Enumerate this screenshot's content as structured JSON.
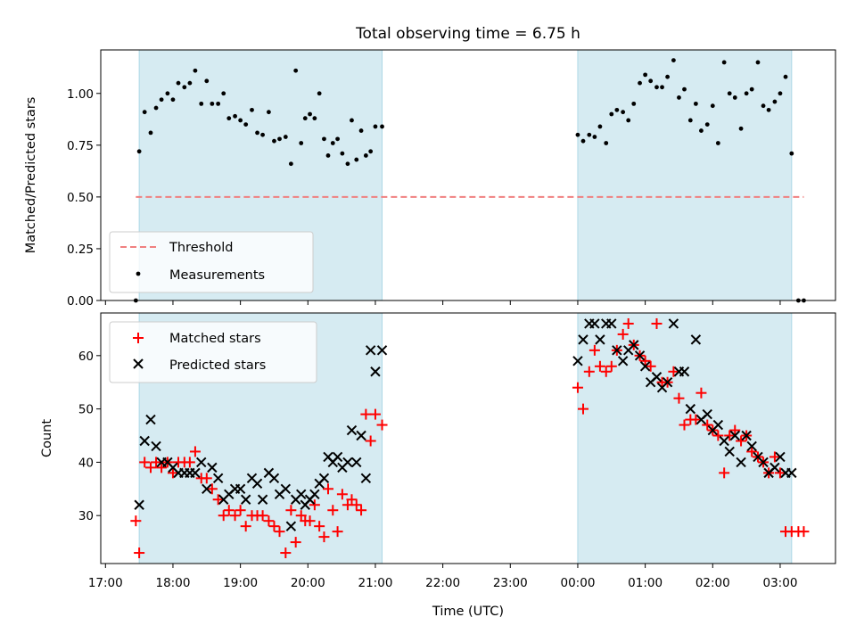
{
  "chart_data": [
    {
      "type": "scatter",
      "title": "Total observing time = 6.75 h",
      "ylabel": "Matched/Predicted stars",
      "xlabel": "",
      "ylim": [
        0,
        1.21
      ],
      "yticks": [
        "0.00",
        "0.25",
        "0.50",
        "0.75",
        "1.00"
      ],
      "ytick_values": [
        0,
        0.25,
        0.5,
        0.75,
        1.0
      ],
      "grid": false,
      "legend": "lower-left",
      "shaded_intervals_hours": [
        [
          17.5,
          21.1
        ],
        [
          24.0,
          27.17
        ]
      ],
      "threshold": {
        "name": "Threshold",
        "value": 0.5,
        "x_start": 17.45,
        "x_end": 27.35,
        "color": "#f08080"
      },
      "series": [
        {
          "name": "Measurements",
          "color": "#000000",
          "x": [
            17.45,
            17.5,
            17.58,
            17.67,
            17.75,
            17.83,
            17.92,
            18.0,
            18.08,
            18.17,
            18.25,
            18.33,
            18.42,
            18.5,
            18.58,
            18.67,
            18.75,
            18.83,
            18.92,
            19.0,
            19.08,
            19.17,
            19.25,
            19.33,
            19.42,
            19.5,
            19.58,
            19.67,
            19.75,
            19.82,
            19.9,
            19.96,
            20.03,
            20.1,
            20.17,
            20.24,
            20.3,
            20.37,
            20.44,
            20.51,
            20.59,
            20.65,
            20.72,
            20.79,
            20.86,
            20.93,
            21.0,
            21.1,
            24.0,
            24.08,
            24.17,
            24.25,
            24.33,
            24.42,
            24.5,
            24.58,
            24.67,
            24.75,
            24.83,
            24.92,
            25.0,
            25.08,
            25.17,
            25.25,
            25.33,
            25.42,
            25.5,
            25.58,
            25.67,
            25.75,
            25.83,
            25.92,
            26.0,
            26.08,
            26.17,
            26.25,
            26.33,
            26.42,
            26.5,
            26.58,
            26.67,
            26.75,
            26.83,
            26.92,
            27.0,
            27.08,
            27.17,
            27.27,
            27.35
          ],
          "y": [
            0.0,
            0.72,
            0.91,
            0.81,
            0.93,
            0.97,
            1.0,
            0.97,
            1.05,
            1.03,
            1.05,
            1.11,
            0.95,
            1.06,
            0.95,
            0.95,
            1.0,
            0.88,
            0.89,
            0.87,
            0.85,
            0.92,
            0.81,
            0.8,
            0.91,
            0.77,
            0.78,
            0.79,
            0.66,
            1.11,
            0.76,
            0.88,
            0.9,
            0.88,
            1.0,
            0.78,
            0.7,
            0.76,
            0.78,
            0.71,
            0.66,
            0.87,
            0.68,
            0.82,
            0.7,
            0.72,
            0.84,
            0.84,
            0.8,
            0.77,
            0.8,
            0.79,
            0.84,
            0.76,
            0.9,
            0.92,
            0.91,
            0.87,
            0.95,
            1.05,
            1.09,
            1.06,
            1.03,
            1.03,
            1.08,
            1.16,
            0.98,
            1.02,
            0.87,
            0.95,
            0.82,
            0.85,
            0.94,
            0.76,
            1.15,
            1.0,
            0.98,
            0.83,
            1.0,
            1.02,
            1.15,
            0.94,
            0.92,
            0.96,
            1.0,
            1.08,
            0.71,
            0.0,
            0.0
          ]
        }
      ]
    },
    {
      "type": "scatter",
      "title": "",
      "ylabel": "Count",
      "xlabel": "Time (UTC)",
      "ylim": [
        21,
        68
      ],
      "yticks": [
        "30",
        "40",
        "50",
        "60"
      ],
      "ytick_values": [
        30,
        40,
        50,
        60
      ],
      "xlim_hours": [
        16.93,
        27.82
      ],
      "xticks": [
        "17:00",
        "18:00",
        "19:00",
        "20:00",
        "21:00",
        "22:00",
        "23:00",
        "00:00",
        "01:00",
        "02:00",
        "03:00"
      ],
      "xtick_hours": [
        17,
        18,
        19,
        20,
        21,
        22,
        23,
        24,
        25,
        26,
        27
      ],
      "grid": false,
      "legend": "top-left",
      "shaded_intervals_hours": [
        [
          17.5,
          21.1
        ],
        [
          24.0,
          27.17
        ]
      ],
      "series": [
        {
          "name": "Matched stars",
          "color": "#ff0000",
          "marker": "plus",
          "x": [
            17.45,
            17.5,
            17.58,
            17.67,
            17.75,
            17.83,
            17.92,
            18.0,
            18.08,
            18.17,
            18.25,
            18.33,
            18.42,
            18.5,
            18.58,
            18.67,
            18.75,
            18.83,
            18.92,
            19.0,
            19.08,
            19.17,
            19.25,
            19.33,
            19.42,
            19.5,
            19.58,
            19.67,
            19.75,
            19.82,
            19.9,
            19.96,
            20.03,
            20.1,
            20.17,
            20.24,
            20.3,
            20.37,
            20.44,
            20.51,
            20.59,
            20.65,
            20.72,
            20.79,
            20.86,
            20.93,
            21.0,
            21.1,
            24.0,
            24.08,
            24.17,
            24.25,
            24.33,
            24.42,
            24.5,
            24.58,
            24.67,
            24.75,
            24.83,
            24.92,
            25.0,
            25.08,
            25.17,
            25.25,
            25.33,
            25.42,
            25.5,
            25.58,
            25.67,
            25.75,
            25.83,
            25.92,
            26.0,
            26.08,
            26.17,
            26.25,
            26.33,
            26.42,
            26.5,
            26.58,
            26.67,
            26.75,
            26.83,
            26.92,
            27.0,
            27.08,
            27.17,
            27.27,
            27.35
          ],
          "y": [
            29,
            23,
            40,
            39,
            40,
            39,
            40,
            38,
            40,
            40,
            40,
            42,
            37,
            37,
            35,
            33,
            30,
            31,
            30,
            31,
            28,
            30,
            30,
            30,
            29,
            28,
            27,
            23,
            31,
            25,
            30,
            29,
            29,
            32,
            28,
            26,
            35,
            31,
            27,
            34,
            32,
            33,
            32,
            31,
            49,
            44,
            49,
            47,
            54,
            50,
            57,
            61,
            58,
            57,
            58,
            61,
            64,
            66,
            62,
            60,
            59,
            58,
            66,
            55,
            55,
            57,
            52,
            47,
            48,
            48,
            53,
            47,
            46,
            45,
            38,
            45,
            46,
            44,
            45,
            42,
            41,
            40,
            38,
            41,
            38,
            27,
            27,
            27,
            27
          ]
        },
        {
          "name": "Predicted stars",
          "color": "#000000",
          "marker": "x",
          "x": [
            17.5,
            17.58,
            17.67,
            17.75,
            17.83,
            17.92,
            18.0,
            18.08,
            18.17,
            18.25,
            18.33,
            18.42,
            18.5,
            18.58,
            18.67,
            18.75,
            18.83,
            18.92,
            19.0,
            19.08,
            19.17,
            19.25,
            19.33,
            19.42,
            19.5,
            19.58,
            19.67,
            19.75,
            19.82,
            19.9,
            19.96,
            20.03,
            20.1,
            20.17,
            20.24,
            20.3,
            20.37,
            20.44,
            20.51,
            20.59,
            20.65,
            20.72,
            20.79,
            20.86,
            20.93,
            21.0,
            21.1,
            24.0,
            24.08,
            24.17,
            24.25,
            24.33,
            24.42,
            24.5,
            24.58,
            24.67,
            24.75,
            24.83,
            24.92,
            25.0,
            25.08,
            25.17,
            25.25,
            25.33,
            25.42,
            25.5,
            25.58,
            25.67,
            25.75,
            25.83,
            25.92,
            26.0,
            26.08,
            26.17,
            26.25,
            26.33,
            26.42,
            26.5,
            26.58,
            26.67,
            26.75,
            26.83,
            26.92,
            27.0,
            27.08,
            27.17
          ],
          "y": [
            32,
            44,
            48,
            43,
            40,
            40,
            39,
            38,
            38,
            38,
            38,
            40,
            35,
            39,
            37,
            33,
            34,
            35,
            35,
            33,
            37,
            36,
            33,
            38,
            37,
            34,
            35,
            28,
            33,
            34,
            32,
            33,
            34,
            36,
            37,
            41,
            40,
            41,
            39,
            40,
            46,
            40,
            45,
            37,
            61,
            57,
            61,
            59,
            63,
            66,
            66,
            63,
            66,
            66,
            61,
            59,
            61,
            62,
            60,
            58,
            55,
            56,
            54,
            55,
            66,
            57,
            57,
            50,
            63,
            48,
            49,
            46,
            47,
            44,
            42,
            45,
            40,
            45,
            43,
            41,
            40,
            38,
            39,
            41,
            38,
            38
          ]
        }
      ]
    }
  ]
}
